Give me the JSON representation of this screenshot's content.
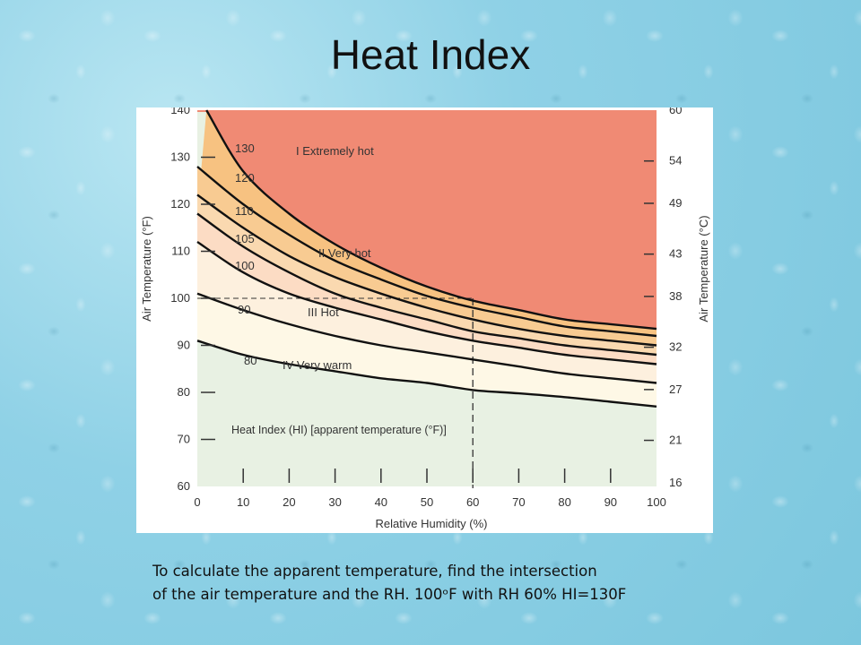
{
  "page": {
    "title": "Heat Index",
    "caption_line1": "To calculate the apparent temperature, find the intersection",
    "caption_line2": "of the air temperature and the RH.  100ᵒF with RH 60% HI=130F"
  },
  "chart_data": {
    "type": "line",
    "xlabel": "Relative Humidity (%)",
    "ylabel": "Air Temperature (°F)",
    "ylabel_right": "Air Temperature (°C)",
    "xlim": [
      0,
      100
    ],
    "ylim": [
      60,
      140
    ],
    "x_ticks": [
      0,
      10,
      20,
      30,
      40,
      50,
      60,
      70,
      80,
      90,
      100
    ],
    "y_ticks": [
      60,
      70,
      80,
      90,
      100,
      110,
      120,
      130,
      140
    ],
    "y_right_ticks": [
      {
        "f": 60.8,
        "label": "16"
      },
      {
        "f": 69.8,
        "label": "21"
      },
      {
        "f": 80.6,
        "label": "27"
      },
      {
        "f": 89.6,
        "label": "32"
      },
      {
        "f": 100.4,
        "label": "38"
      },
      {
        "f": 109.4,
        "label": "43"
      },
      {
        "f": 120.2,
        "label": "49"
      },
      {
        "f": 129.2,
        "label": "54"
      },
      {
        "f": 140,
        "label": "60"
      }
    ],
    "series": [
      {
        "name": "80",
        "x": [
          0,
          10,
          20,
          30,
          40,
          50,
          60,
          70,
          80,
          90,
          100
        ],
        "y": [
          91,
          88,
          86,
          84.5,
          83,
          82,
          80.5,
          79.8,
          79,
          78,
          77
        ]
      },
      {
        "name": "90",
        "x": [
          0,
          10,
          20,
          30,
          40,
          50,
          60,
          70,
          80,
          90,
          100
        ],
        "y": [
          101,
          97.5,
          94.5,
          92,
          90,
          88.5,
          87,
          85.5,
          84,
          83,
          82
        ]
      },
      {
        "name": "100",
        "x": [
          0,
          10,
          20,
          30,
          40,
          50,
          60,
          70,
          80,
          90,
          100
        ],
        "y": [
          112,
          105.5,
          101,
          98,
          95.5,
          93,
          91,
          89.5,
          88,
          87,
          86
        ]
      },
      {
        "name": "105",
        "x": [
          0,
          10,
          20,
          30,
          40,
          50,
          60,
          70,
          80,
          90,
          100
        ],
        "y": [
          118,
          111,
          105.5,
          101,
          98,
          95.5,
          93,
          91.5,
          90,
          89,
          88
        ]
      },
      {
        "name": "110",
        "x": [
          0,
          10,
          20,
          30,
          40,
          50,
          60,
          70,
          80,
          90,
          100
        ],
        "y": [
          122,
          115,
          109,
          104.5,
          101,
          98,
          95.5,
          93.5,
          92,
          91,
          90
        ]
      },
      {
        "name": "120",
        "x": [
          0,
          10,
          20,
          30,
          40,
          50,
          60,
          70,
          80,
          90,
          100
        ],
        "y": [
          128,
          120,
          113.5,
          108,
          104,
          100.5,
          98,
          96,
          94,
          93,
          92
        ]
      },
      {
        "name": "130",
        "x": [
          2,
          10,
          20,
          30,
          40,
          50,
          60,
          70,
          80,
          90,
          100
        ],
        "y": [
          140,
          127,
          118,
          111.5,
          106.5,
          102.5,
          99.5,
          97.5,
          95.5,
          94.5,
          93.5
        ]
      }
    ],
    "zones": [
      {
        "label": "I  Extremely hot",
        "color": "#f08a74"
      },
      {
        "label": "II  Very hot",
        "color": "#f7c281"
      },
      {
        "label": "III  Hot",
        "color": "#fcdcc4"
      },
      {
        "label": "IV  Very warm",
        "color": "#fef8e6"
      },
      {
        "label": "",
        "color": "#e8f1e3"
      }
    ],
    "annotation": "Heat Index (HI) [apparent temperature (°F)]",
    "reference": {
      "x": 60,
      "y": 100
    },
    "grid": false
  }
}
